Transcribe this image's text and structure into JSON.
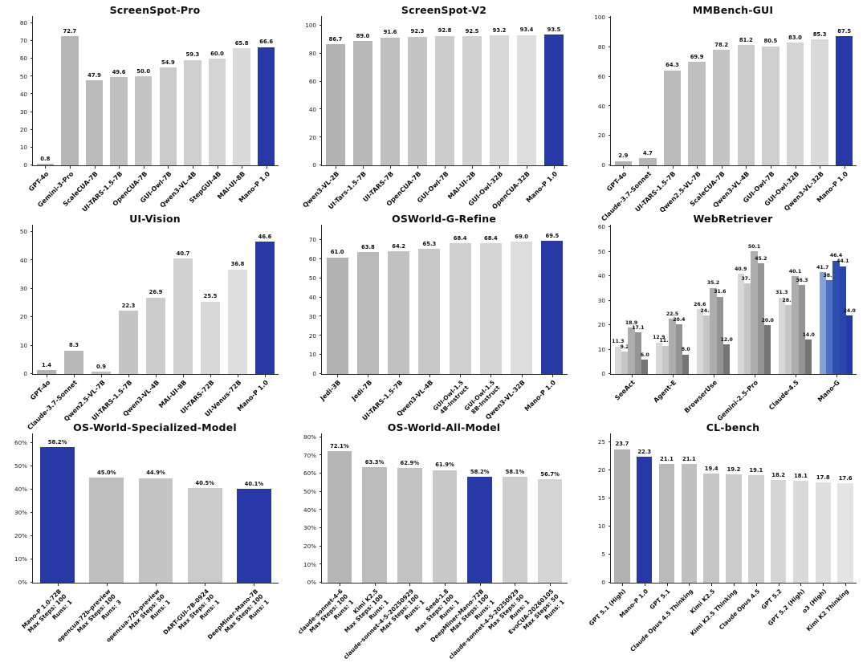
{
  "page": {
    "background": "#ffffff",
    "highlight_color": "#2639a6",
    "layout": "3x3-benchmark-grid"
  },
  "chart_data": [
    {
      "type": "bar",
      "title": "ScreenSpot-Pro",
      "categories": [
        "GPT-4o",
        "Gemini-3-Pro",
        "ScaleCUA-7B",
        "UI-TARS-1.5-7B",
        "OpenCUA-7B",
        "GUI-Owl-7B",
        "Qwen3-VL-4B",
        "StepGUI-4B",
        "MAI-UI-8B",
        "Mano-P 1.0"
      ],
      "values": [
        0.8,
        72.7,
        47.9,
        49.6,
        50.0,
        54.9,
        59.3,
        60.0,
        65.8,
        66.6
      ],
      "value_labels": [
        "0.8",
        "72.7",
        "47.9",
        "49.6",
        "50.0",
        "54.9",
        "59.3",
        "60.0",
        "65.8",
        "66.6"
      ],
      "colors": [
        "#b2b2b2",
        "#b6b6b6",
        "#bbbbbb",
        "#c0c0c0",
        "#c5c5c5",
        "#cacaca",
        "#cfcfcf",
        "#d4d4d4",
        "#dadada",
        "#2639a6"
      ],
      "yticks": [
        0,
        10,
        20,
        30,
        40,
        50,
        60,
        70,
        80
      ],
      "ytick_labels": [
        "0",
        "10",
        "20",
        "30",
        "40",
        "50",
        "60",
        "70",
        "80"
      ],
      "ylim": [
        0,
        84
      ],
      "grid": false,
      "legend": "none"
    },
    {
      "type": "bar",
      "title": "ScreenSpot-V2",
      "categories": [
        "Qwen3-VL-2B",
        "UI-Tars-1.5-7B",
        "UI-TARS-7B",
        "OpenCUA-7B",
        "GUI-Owl-7B",
        "MAI-UI-2B",
        "GUI-Owl-32B",
        "OpenCUA-32B",
        "Mano-P 1.0"
      ],
      "values": [
        86.7,
        89.0,
        91.6,
        92.3,
        92.8,
        92.5,
        93.2,
        93.4,
        93.5
      ],
      "value_labels": [
        "86.7",
        "89.0",
        "91.6",
        "92.3",
        "92.8",
        "92.5",
        "93.2",
        "93.4",
        "93.5"
      ],
      "colors": [
        "#b3b3b3",
        "#b9b9b9",
        "#bfbfbf",
        "#c5c5c5",
        "#cccccc",
        "#d2d2d2",
        "#d8d8d8",
        "#dedede",
        "#2639a6"
      ],
      "yticks": [
        0,
        20,
        40,
        60,
        80,
        100
      ],
      "ytick_labels": [
        "0",
        "20",
        "40",
        "60",
        "80",
        "100"
      ],
      "ylim": [
        0,
        107
      ],
      "grid": false,
      "legend": "none"
    },
    {
      "type": "bar",
      "title": "MMBench-GUI",
      "categories": [
        "GPT-4o",
        "Claude-3.7-Sonnet",
        "UI-TARS-1.5-7B",
        "Qwen2.5-VL-7B",
        "ScaleCUA-7B",
        "Qwen3-VL-4B",
        "GUI-Owl-7B",
        "GUI-Owl-32B",
        "Qwen3-VL-32B",
        "Mano-P 1.0"
      ],
      "values": [
        2.9,
        4.7,
        64.3,
        69.9,
        78.2,
        81.2,
        80.5,
        83.0,
        85.3,
        87.5
      ],
      "value_labels": [
        "2.9",
        "4.7",
        "64.3",
        "69.9",
        "78.2",
        "81.2",
        "80.5",
        "83.0",
        "85.3",
        "87.5"
      ],
      "colors": [
        "#b2b2b2",
        "#b6b6b6",
        "#bbbbbb",
        "#c0c0c0",
        "#c5c5c5",
        "#cacaca",
        "#cfcfcf",
        "#d4d4d4",
        "#dadada",
        "#2639a6"
      ],
      "yticks": [
        0,
        20,
        40,
        60,
        80,
        100
      ],
      "ytick_labels": [
        "0",
        "20",
        "40",
        "60",
        "80",
        "100"
      ],
      "ylim": [
        0,
        101
      ],
      "grid": false,
      "legend": "none"
    },
    {
      "type": "bar",
      "title": "UI-Vision",
      "categories": [
        "GPT-4o",
        "Claude-3.7-Sonnet",
        "Qwen2.5-VL-7B",
        "UI-TARS-1.5-7B",
        "Qwen3-VL-4B",
        "MAI-UI-8B",
        "UI-TARS-72B",
        "UI-Venus-72B",
        "Mano-P 1.0"
      ],
      "values": [
        1.4,
        8.3,
        0.9,
        22.3,
        26.9,
        40.7,
        25.5,
        36.8,
        46.6
      ],
      "value_labels": [
        "1.4",
        "8.3",
        "0.9",
        "22.3",
        "26.9",
        "40.7",
        "25.5",
        "36.8",
        "46.6"
      ],
      "colors": [
        "#b3b3b3",
        "#b9b9b9",
        "#bfbfbf",
        "#c5c5c5",
        "#cccccc",
        "#d2d2d2",
        "#d8d8d8",
        "#dedede",
        "#2639a6"
      ],
      "yticks": [
        0,
        10,
        20,
        30,
        40,
        50
      ],
      "ytick_labels": [
        "0",
        "10",
        "20",
        "30",
        "40",
        "50"
      ],
      "ylim": [
        0,
        52.5
      ],
      "grid": false,
      "legend": "none"
    },
    {
      "type": "bar",
      "title": "OSWorld-G-Refine",
      "categories": [
        "Jedi-3B",
        "Jedi-7B",
        "UI-TARS-1.5-7B",
        "Qwen3-VL-4B",
        "GUI-Owl-1.5\n4B-Instruct",
        "GUI-Owl-1.5\n8B-Instruct",
        "Qwen3-VL-32B",
        "Mano-P 1.0"
      ],
      "values": [
        61.0,
        63.8,
        64.2,
        65.3,
        68.4,
        68.4,
        69.0,
        69.5
      ],
      "value_labels": [
        "61.0",
        "63.8",
        "64.2",
        "65.3",
        "68.4",
        "68.4",
        "69.0",
        "69.5"
      ],
      "colors": [
        "#b3b3b3",
        "#bababa",
        "#c1c1c1",
        "#c8c8c8",
        "#cfcfcf",
        "#d6d6d6",
        "#dddddd",
        "#2639a6"
      ],
      "yticks": [
        0,
        10,
        20,
        30,
        40,
        50,
        60,
        70
      ],
      "ytick_labels": [
        "0",
        "10",
        "20",
        "30",
        "40",
        "50",
        "60",
        "70"
      ],
      "ylim": [
        0,
        78
      ],
      "grid": false,
      "legend": "none"
    },
    {
      "type": "grouped_bar",
      "title": "WebRetriever",
      "categories": [
        "SeeAct",
        "Agent-E",
        "BrowserUse",
        "Gemini-2.5-Pro",
        "Claude-4.5",
        "Mano-G"
      ],
      "series_per_group": 5,
      "values": [
        [
          11.3,
          9.2,
          18.9,
          17.1,
          6.0
        ],
        [
          12.9,
          11.6,
          22.5,
          20.4,
          8.0
        ],
        [
          26.6,
          24.0,
          35.2,
          31.6,
          12.0
        ],
        [
          40.9,
          37.1,
          50.1,
          45.2,
          20.0
        ],
        [
          31.3,
          28.1,
          40.1,
          36.3,
          14.0
        ],
        [
          41.7,
          38.3,
          46.4,
          44.1,
          24.0
        ]
      ],
      "value_labels": [
        [
          "11.3",
          "9.2",
          "18.9",
          "17.1",
          "6.0"
        ],
        [
          "12.9",
          "11.6",
          "22.5",
          "20.4",
          "8.0"
        ],
        [
          "26.6",
          "24.0",
          "35.2",
          "31.6",
          "12.0"
        ],
        [
          "40.9",
          "37.1",
          "50.1",
          "45.2",
          "20.0"
        ],
        [
          "31.3",
          "28.1",
          "40.1",
          "36.3",
          "14.0"
        ],
        [
          "41.7",
          "38.3",
          "46.4",
          "44.1",
          "24.0"
        ]
      ],
      "group_colors": [
        [
          "#d8d8d8",
          "#c6c6c6",
          "#adadad",
          "#949494",
          "#757575"
        ],
        [
          "#d8d8d8",
          "#c6c6c6",
          "#adadad",
          "#949494",
          "#757575"
        ],
        [
          "#d8d8d8",
          "#c6c6c6",
          "#adadad",
          "#949494",
          "#757575"
        ],
        [
          "#d8d8d8",
          "#c6c6c6",
          "#adadad",
          "#949494",
          "#757575"
        ],
        [
          "#d8d8d8",
          "#c6c6c6",
          "#adadad",
          "#949494",
          "#757575"
        ],
        [
          "#85a3da",
          "#4d70c4",
          "#2f4fae",
          "#2a46ac",
          "#2439ac"
        ]
      ],
      "yticks": [
        0,
        10,
        20,
        30,
        40,
        50,
        60
      ],
      "ytick_labels": [
        "0",
        "10",
        "20",
        "30",
        "40",
        "50",
        "60"
      ],
      "ylim": [
        0,
        61
      ],
      "grid": false,
      "legend": "none"
    },
    {
      "type": "bar",
      "title": "OS-World-Specialized-Model",
      "categories": [
        "Mano-P 1.0-72B\nMax Steps: 100\nRuns: 1",
        "opencua-72b-preview\nMax Steps: 100\nRuns: 3",
        "opencua-72b-preview\nMax Steps: 50\nRuns: 1",
        "DART-GUI-7B-0924\nMax Steps: 30\nRuns: 1",
        "DeepMiner-Mano-7B\nMax Steps: 100\nRuns: 1"
      ],
      "values": [
        58.2,
        45.0,
        44.9,
        40.5,
        40.1
      ],
      "value_labels": [
        "58.2%",
        "45.0%",
        "44.9%",
        "40.5%",
        "40.1%"
      ],
      "colors": [
        "#2639a6",
        "#bfbfbf",
        "#c4c4c4",
        "#cacaca",
        "#2639a6"
      ],
      "yticks": [
        0,
        10,
        20,
        30,
        40,
        50,
        60
      ],
      "ytick_labels": [
        "0%",
        "10%",
        "20%",
        "30%",
        "40%",
        "50%",
        "60%"
      ],
      "ylim": [
        0,
        64
      ],
      "grid": false,
      "legend": "none"
    },
    {
      "type": "bar",
      "title": "OS-World-All-Model",
      "categories": [
        "claude-sonnet-4-6\nMax Steps: 100\nRuns: 1",
        "Kimi K2.5\nMax Steps: 100\nRuns: 1",
        "claude-sonnet-4-5-20250929\nMax Steps: 100\nRuns: 1",
        "Seed-1.8\nMax Steps: 100\nRuns: 1",
        "DeepMiner-Mano-72B\nMax Steps: 100\nRuns: 1",
        "claude-sonnet-4-5-20250929\nMax Steps: 50\nRuns: 1",
        "EvoCUA-20260105\nMax Steps: 50\nRuns: 1"
      ],
      "values": [
        72.1,
        63.3,
        62.9,
        61.9,
        58.2,
        58.1,
        56.7
      ],
      "value_labels": [
        "72.1%",
        "63.3%",
        "62.9%",
        "61.9%",
        "58.2%",
        "58.1%",
        "56.7%"
      ],
      "colors": [
        "#b6b6b6",
        "#bcbcbc",
        "#c2c2c2",
        "#c8c8c8",
        "#2639a6",
        "#cecece",
        "#d4d4d4"
      ],
      "yticks": [
        0,
        10,
        20,
        30,
        40,
        50,
        60,
        70,
        80
      ],
      "ytick_labels": [
        "0%",
        "10%",
        "20%",
        "30%",
        "40%",
        "50%",
        "60%",
        "70%",
        "80%"
      ],
      "ylim": [
        0,
        82
      ],
      "grid": false,
      "legend": "none"
    },
    {
      "type": "bar",
      "title": "CL-bench",
      "categories": [
        "GPT 5.1 (High)",
        "Mano-P 1.0",
        "GPT 5.1",
        "Claude Opus 4.5 Thinking",
        "Kimi K2.5",
        "Kimi K2.5 Thinking",
        "Claude Opus 4.5",
        "GPT 5.2",
        "GPT 5.2 (High)",
        "o3 (High)",
        "Kimi K2 Thinking"
      ],
      "values": [
        23.7,
        22.3,
        21.1,
        21.1,
        19.4,
        19.2,
        19.1,
        18.2,
        18.1,
        17.8,
        17.6
      ],
      "value_labels": [
        "23.7",
        "22.3",
        "21.1",
        "21.1",
        "19.4",
        "19.2",
        "19.1",
        "18.2",
        "18.1",
        "17.8",
        "17.6"
      ],
      "colors": [
        "#b2b2b2",
        "#2639a6",
        "#bababa",
        "#c0c0c0",
        "#c6c6c6",
        "#cbcbcb",
        "#d0d0d0",
        "#d5d5d5",
        "#dadada",
        "#dfdfdf",
        "#e4e4e4"
      ],
      "yticks": [
        0,
        5,
        10,
        15,
        20,
        25
      ],
      "ytick_labels": [
        "0",
        "5",
        "10",
        "15",
        "20",
        "25"
      ],
      "ylim": [
        0,
        26.5
      ],
      "grid": false,
      "legend": "none"
    }
  ]
}
